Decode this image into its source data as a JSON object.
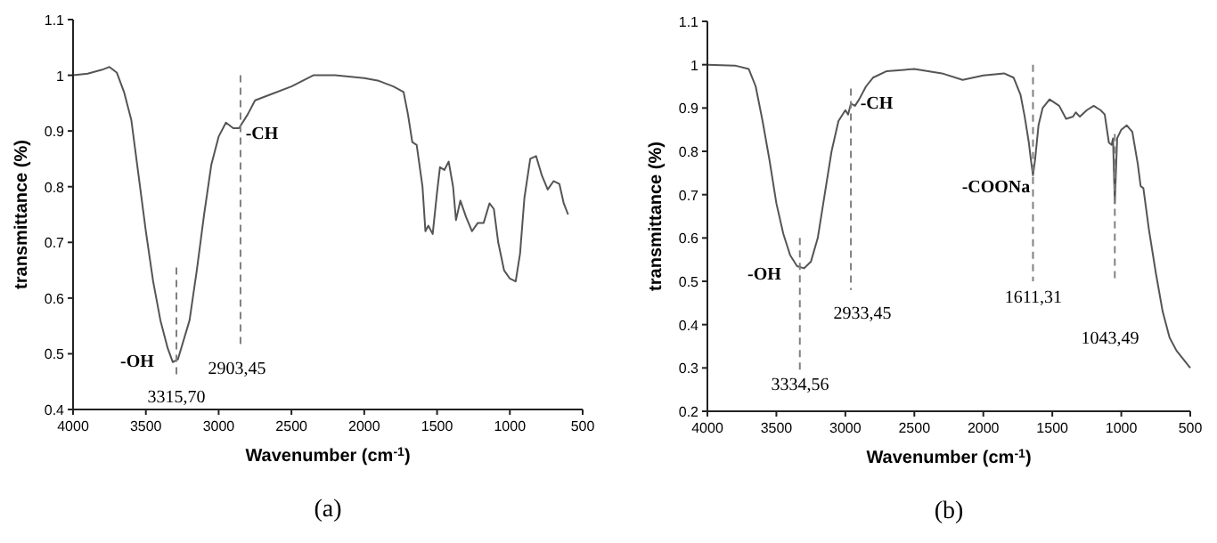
{
  "chart_data": [
    {
      "type": "line",
      "title": "(a)",
      "xlabel": "Wavenumber (cm$^{-1}$)",
      "ylabel": "transmittance (%)",
      "xlim": [
        4000,
        500
      ],
      "xticks": [
        4000,
        3500,
        3000,
        2500,
        2000,
        1500,
        1000,
        500
      ],
      "ylim": [
        0.4,
        1.1
      ],
      "yticks": [
        0.4,
        0.5,
        0.6,
        0.7,
        0.8,
        0.9,
        1,
        1.1
      ],
      "series": [
        {
          "color": "#555555",
          "x": [
            4000,
            3900,
            3800,
            3750,
            3700,
            3650,
            3600,
            3550,
            3500,
            3450,
            3400,
            3350,
            3315,
            3280,
            3200,
            3150,
            3100,
            3050,
            3000,
            2950,
            2900,
            2860,
            2800,
            2750,
            2650,
            2500,
            2350,
            2200,
            2000,
            1900,
            1800,
            1730,
            1700,
            1670,
            1640,
            1600,
            1580,
            1560,
            1530,
            1500,
            1480,
            1450,
            1420,
            1390,
            1370,
            1340,
            1300,
            1260,
            1220,
            1180,
            1140,
            1110,
            1080,
            1040,
            1000,
            960,
            930,
            900,
            860,
            820,
            780,
            740,
            700,
            660,
            630,
            600
          ],
          "values": [
            1.0,
            1.003,
            1.01,
            1.015,
            1.005,
            0.97,
            0.92,
            0.82,
            0.72,
            0.63,
            0.56,
            0.51,
            0.485,
            0.49,
            0.56,
            0.65,
            0.75,
            0.84,
            0.89,
            0.915,
            0.905,
            0.905,
            0.93,
            0.955,
            0.965,
            0.98,
            1.0,
            1.0,
            0.995,
            0.99,
            0.98,
            0.97,
            0.93,
            0.88,
            0.875,
            0.8,
            0.72,
            0.73,
            0.715,
            0.79,
            0.835,
            0.83,
            0.845,
            0.8,
            0.74,
            0.775,
            0.745,
            0.72,
            0.735,
            0.735,
            0.77,
            0.76,
            0.7,
            0.65,
            0.635,
            0.63,
            0.68,
            0.78,
            0.85,
            0.855,
            0.82,
            0.795,
            0.81,
            0.805,
            0.77,
            0.75
          ]
        },
        {
          "color": "#808080",
          "line_style": "dashed",
          "x": [
            3290,
            3290
          ],
          "values": [
            0.655,
            0.46
          ]
        },
        {
          "color": "#808080",
          "line_style": "dashed",
          "x": [
            2850,
            2850
          ],
          "values": [
            1.0,
            0.51
          ]
        }
      ],
      "annotations": [
        "-OH",
        "3315,70",
        "-CH",
        "2903,45"
      ]
    },
    {
      "type": "line",
      "title": "(b)",
      "xlabel": "Wavenumber (cm$^{-1}$)",
      "ylabel": "transmittance (%)",
      "xlim": [
        4000,
        500
      ],
      "xticks": [
        4000,
        3500,
        3000,
        2500,
        2000,
        1500,
        1000,
        500
      ],
      "ylim": [
        0.2,
        1.1
      ],
      "yticks": [
        0.2,
        0.3,
        0.4,
        0.5,
        0.6,
        0.7,
        0.8,
        0.9,
        1,
        1.1
      ],
      "series": [
        {
          "color": "#555555",
          "x": [
            4000,
            3800,
            3700,
            3650,
            3600,
            3550,
            3500,
            3450,
            3400,
            3350,
            3300,
            3250,
            3200,
            3150,
            3100,
            3050,
            3000,
            2980,
            2960,
            2930,
            2900,
            2850,
            2800,
            2700,
            2500,
            2300,
            2150,
            2000,
            1850,
            1780,
            1730,
            1700,
            1670,
            1655,
            1640,
            1625,
            1600,
            1570,
            1520,
            1450,
            1400,
            1350,
            1330,
            1300,
            1250,
            1200,
            1150,
            1120,
            1090,
            1070,
            1060,
            1047,
            1030,
            1000,
            960,
            920,
            880,
            860,
            840,
            800,
            750,
            700,
            650,
            600,
            550,
            500
          ],
          "values": [
            1.0,
            0.998,
            0.99,
            0.95,
            0.87,
            0.78,
            0.68,
            0.61,
            0.56,
            0.535,
            0.53,
            0.545,
            0.6,
            0.7,
            0.8,
            0.87,
            0.895,
            0.885,
            0.91,
            0.905,
            0.92,
            0.95,
            0.97,
            0.985,
            0.99,
            0.98,
            0.965,
            0.975,
            0.98,
            0.97,
            0.93,
            0.88,
            0.82,
            0.78,
            0.745,
            0.78,
            0.86,
            0.9,
            0.92,
            0.905,
            0.875,
            0.88,
            0.89,
            0.88,
            0.895,
            0.905,
            0.895,
            0.885,
            0.82,
            0.815,
            0.83,
            0.68,
            0.83,
            0.85,
            0.86,
            0.845,
            0.77,
            0.72,
            0.715,
            0.62,
            0.52,
            0.43,
            0.37,
            0.34,
            0.32,
            0.3
          ]
        },
        {
          "color": "#808080",
          "line_style": "dashed",
          "x": [
            3330,
            3330
          ],
          "values": [
            0.6,
            0.29
          ]
        },
        {
          "color": "#808080",
          "line_style": "dashed",
          "x": [
            2960,
            2960
          ],
          "values": [
            0.945,
            0.48
          ]
        },
        {
          "color": "#808080",
          "line_style": "dashed",
          "x": [
            1640,
            1640
          ],
          "values": [
            1.0,
            0.5
          ]
        },
        {
          "color": "#808080",
          "line_style": "dashed",
          "x": [
            1047,
            1047
          ],
          "values": [
            0.84,
            0.5
          ]
        }
      ],
      "annotations": [
        "-OH",
        "3334,56",
        "-CH",
        "2933,45",
        "-COONa",
        "1611,31",
        "1043,49"
      ]
    }
  ]
}
